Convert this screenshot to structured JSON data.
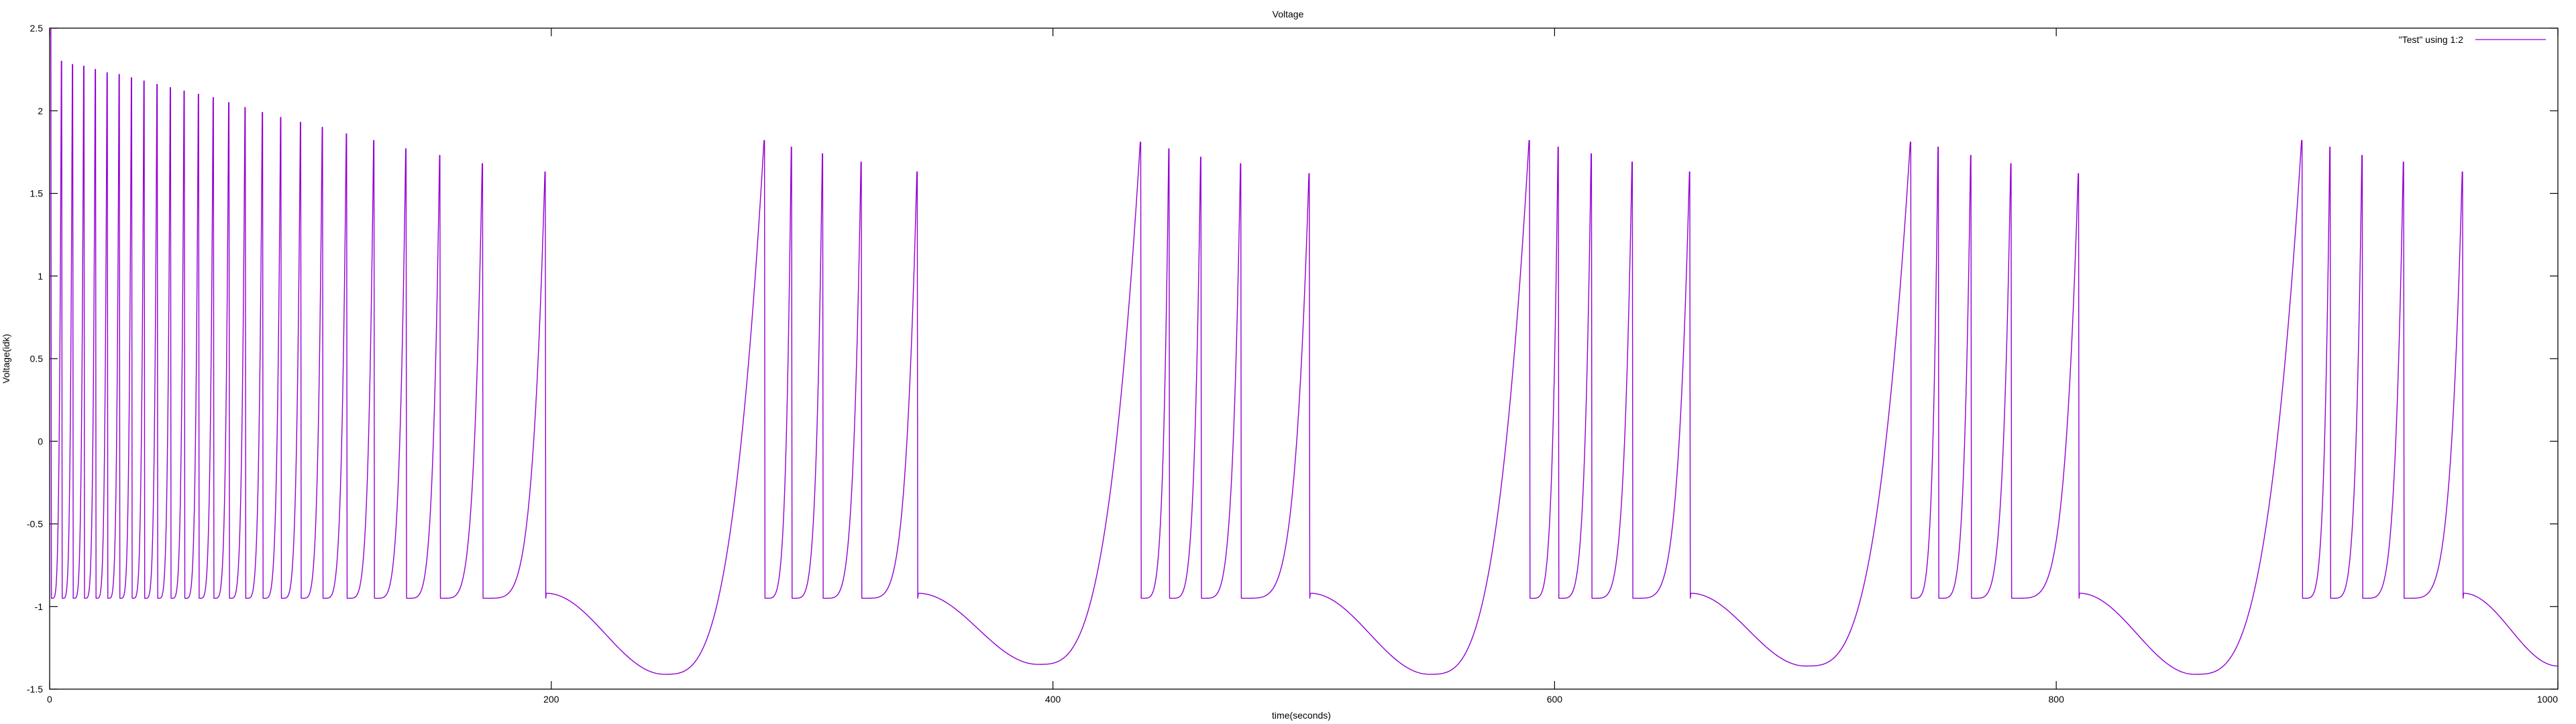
{
  "chart_data": {
    "type": "line",
    "title": "Voltage",
    "xlabel": "time(seconds)",
    "ylabel": "Voltage(idk)",
    "xlim": [
      0,
      1000
    ],
    "ylim": [
      -1.5,
      2.5
    ],
    "xticks": [
      "0",
      "200",
      "400",
      "600",
      "800",
      "1000"
    ],
    "yticks": [
      "2.5",
      "2",
      "1.5",
      "1",
      "0.5",
      "0",
      "-0.5",
      "-1",
      "-1.5"
    ],
    "grid": false,
    "legend_position": "top-right",
    "series": [
      {
        "name": "\"Test\" using 1:2",
        "color": "#9400d3",
        "start_value": 2.5,
        "reset_value": -0.95,
        "burst_spike_times": [
          0.5,
          4.8,
          9.2,
          13.7,
          18.3,
          23.0,
          27.8,
          32.7,
          37.7,
          42.9,
          48.2,
          53.7,
          59.4,
          65.3,
          71.5,
          78.0,
          84.9,
          92.2,
          100.1,
          108.8,
          118.4,
          129.3,
          142.1,
          155.6,
          172.6,
          197.6,
          285.0,
          295.8,
          308.2,
          323.6,
          345.9,
          435.0,
          446.3,
          459.0,
          474.9,
          502.2,
          590.0,
          601.5,
          614.7,
          631.0,
          653.9,
          742.0,
          753.0,
          766.0,
          782.0,
          808.9,
          898.0,
          909.2,
          922.0,
          938.5,
          962.0
        ],
        "spike_peaks": [
          2.5,
          2.3,
          2.28,
          2.27,
          2.25,
          2.23,
          2.22,
          2.2,
          2.18,
          2.16,
          2.14,
          2.12,
          2.1,
          2.08,
          2.05,
          2.02,
          1.99,
          1.96,
          1.93,
          1.9,
          1.86,
          1.82,
          1.77,
          1.73,
          1.68,
          1.63,
          1.82,
          1.78,
          1.74,
          1.69,
          1.63,
          1.81,
          1.77,
          1.72,
          1.68,
          1.62,
          1.82,
          1.78,
          1.74,
          1.69,
          1.63,
          1.81,
          1.78,
          1.73,
          1.68,
          1.62,
          1.82,
          1.78,
          1.73,
          1.69,
          1.63
        ],
        "after_burst_value": -0.92,
        "inter_burst_minima": [
          [
            245,
            -1.41
          ],
          [
            394,
            -1.35
          ],
          [
            550,
            -1.41
          ],
          [
            700,
            -1.36
          ],
          [
            855,
            -1.41
          ]
        ],
        "end_value": -1.36
      }
    ]
  }
}
